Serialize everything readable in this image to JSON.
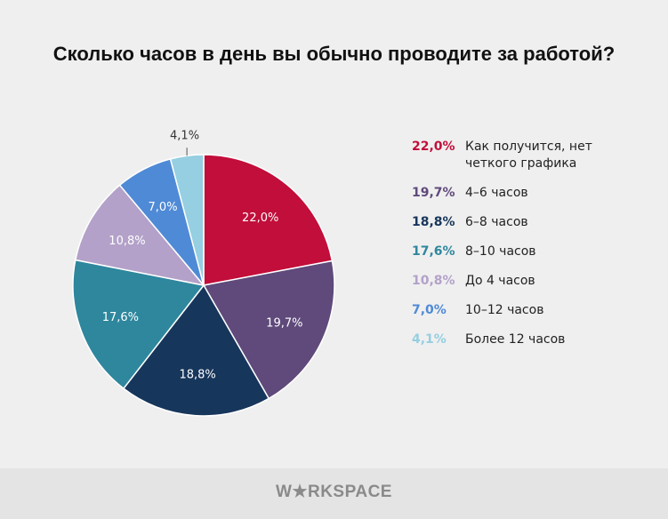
{
  "chart_data": {
    "type": "pie",
    "title": "Сколько часов в день вы обычно проводите за работой?",
    "slices": [
      {
        "label": "Как получится, нет четкого графика",
        "value": 22.0,
        "text": "22,0%",
        "color": "#c20e3a"
      },
      {
        "label": "4–6 часов",
        "value": 19.7,
        "text": "19,7%",
        "color": "#5f4a7b"
      },
      {
        "label": "6–8 часов",
        "value": 18.8,
        "text": "18,8%",
        "color": "#17365b"
      },
      {
        "label": "8–10 часов",
        "value": 17.6,
        "text": "17,6%",
        "color": "#2e879d"
      },
      {
        "label": "До 4 часов",
        "value": 10.8,
        "text": "10,8%",
        "color": "#b3a1c9"
      },
      {
        "label": "10–12 часов",
        "value": 7.0,
        "text": "7,0%",
        "color": "#4f8ad6"
      },
      {
        "label": "Более 12 часов",
        "value": 4.1,
        "text": "4,1%",
        "color": "#95cfe1"
      }
    ],
    "legend_position": "right",
    "start_angle": "top, clockwise"
  },
  "footer": {
    "logo": "WORKSPACE"
  }
}
